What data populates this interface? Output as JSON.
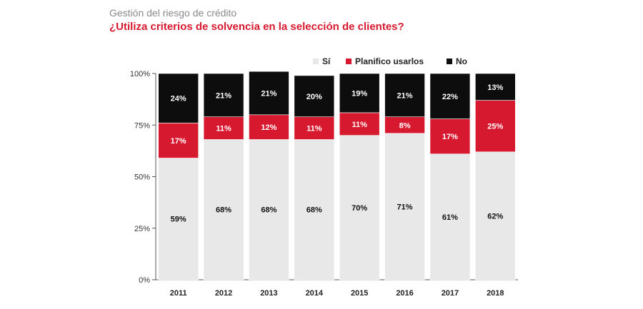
{
  "header": {
    "supertitle": "Gestión del riesgo de crédito",
    "title": "¿Utiliza criterios de solvencia en la selección de clientes?"
  },
  "colors": {
    "si": "#e8e8e8",
    "planifico": "#d7192f",
    "no": "#0d0d0d",
    "label_on_light": "#111111",
    "label_on_dark": "#ffffff"
  },
  "chart_data": {
    "type": "bar",
    "stacked": true,
    "categories": [
      "2011",
      "2012",
      "2013",
      "2014",
      "2015",
      "2016",
      "2017",
      "2018"
    ],
    "series": [
      {
        "name": "Sí",
        "color_key": "si",
        "values": [
          59,
          68,
          68,
          68,
          70,
          71,
          61,
          62
        ],
        "labels": [
          "59%",
          "68%",
          "68%",
          "68%",
          "70%",
          "71%",
          "61%",
          "62%"
        ]
      },
      {
        "name": "Planifico usarlos",
        "color_key": "planifico",
        "values": [
          17,
          11,
          12,
          11,
          11,
          8,
          17,
          25
        ],
        "labels": [
          "17%",
          "11%",
          "12%",
          "11%",
          "11%",
          "8%",
          "17%",
          "25%"
        ]
      },
      {
        "name": "No",
        "color_key": "no",
        "values": [
          24,
          21,
          21,
          20,
          19,
          21,
          22,
          13
        ],
        "labels": [
          "24%",
          "21%",
          "21%",
          "20%",
          "19%",
          "21%",
          "22%",
          "13%"
        ]
      }
    ],
    "yticks": [
      0,
      25,
      50,
      75,
      100
    ],
    "ytick_labels": [
      "0%",
      "25%",
      "50%",
      "75%",
      "100%"
    ],
    "ylim": [
      0,
      100
    ],
    "legend": "top-right",
    "xlabel": "",
    "ylabel": ""
  }
}
